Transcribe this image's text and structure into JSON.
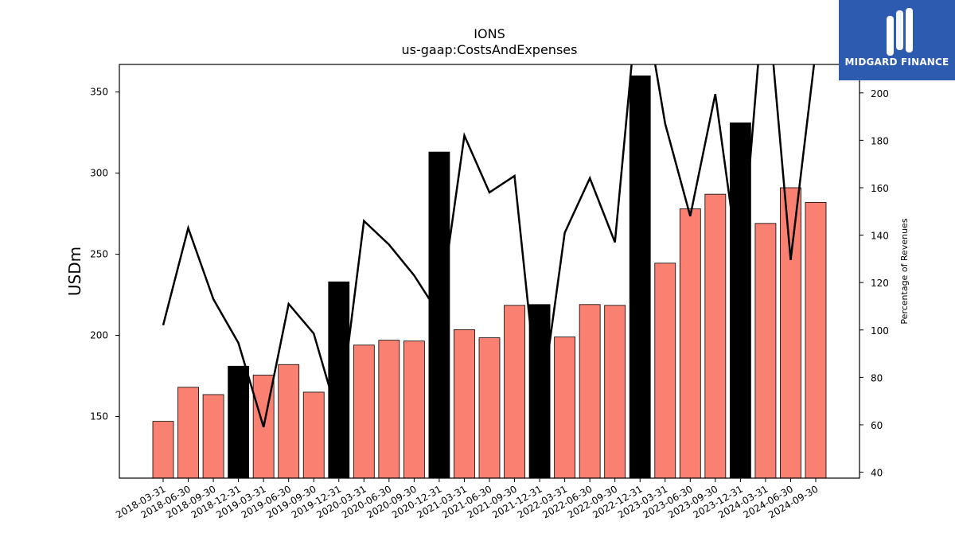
{
  "chart_data": {
    "type": "bar",
    "title": "IONS",
    "subtitle": "us-gaap:CostsAndExpenses",
    "ylabel": "USDm",
    "y2label": "Percentage of Revenues",
    "ylim": [
      112,
      367
    ],
    "y2lim": [
      37.5,
      212
    ],
    "yticks": [
      150,
      200,
      250,
      300,
      350
    ],
    "y2ticks": [
      40,
      60,
      80,
      100,
      120,
      140,
      160,
      180,
      200
    ],
    "categories": [
      "2018-03-31",
      "2018-06-30",
      "2018-09-30",
      "2018-12-31",
      "2019-03-31",
      "2019-06-30",
      "2019-09-30",
      "2019-12-31",
      "2020-03-31",
      "2020-06-30",
      "2020-09-30",
      "2020-12-31",
      "2021-03-31",
      "2021-06-30",
      "2021-09-30",
      "2021-12-31",
      "2022-03-31",
      "2022-06-30",
      "2022-09-30",
      "2022-12-31",
      "2023-03-31",
      "2023-06-30",
      "2023-09-30",
      "2023-12-31",
      "2024-03-31",
      "2024-06-30",
      "2024-09-30"
    ],
    "series": [
      {
        "type": "bar",
        "axis": "left",
        "values": [
          147,
          168,
          163.5,
          181,
          175.5,
          182,
          165,
          233,
          194,
          197,
          196.5,
          313,
          203.5,
          198.5,
          218.5,
          219,
          199,
          219,
          218.5,
          360,
          244.5,
          278,
          287,
          331,
          269,
          291,
          282
        ],
        "colors": [
          "#fa8072",
          "#fa8072",
          "#fa8072",
          "#000000",
          "#fa8072",
          "#fa8072",
          "#fa8072",
          "#000000",
          "#fa8072",
          "#fa8072",
          "#fa8072",
          "#000000",
          "#fa8072",
          "#fa8072",
          "#fa8072",
          "#000000",
          "#fa8072",
          "#fa8072",
          "#fa8072",
          "#000000",
          "#fa8072",
          "#fa8072",
          "#fa8072",
          "#000000",
          "#fa8072",
          "#fa8072",
          "#fa8072"
        ]
      },
      {
        "type": "line",
        "axis": "right",
        "color": "#000000",
        "values": [
          102,
          143,
          113,
          94.5,
          59,
          111,
          98.5,
          62,
          146,
          136,
          123,
          106.5,
          182,
          158,
          165,
          64,
          141,
          164,
          137,
          250,
          187,
          148,
          199.5,
          122,
          250,
          129.5,
          218
        ]
      }
    ],
    "grid": false,
    "legend": "none"
  },
  "logo": {
    "text": "MIDGARD FINANCE"
  }
}
